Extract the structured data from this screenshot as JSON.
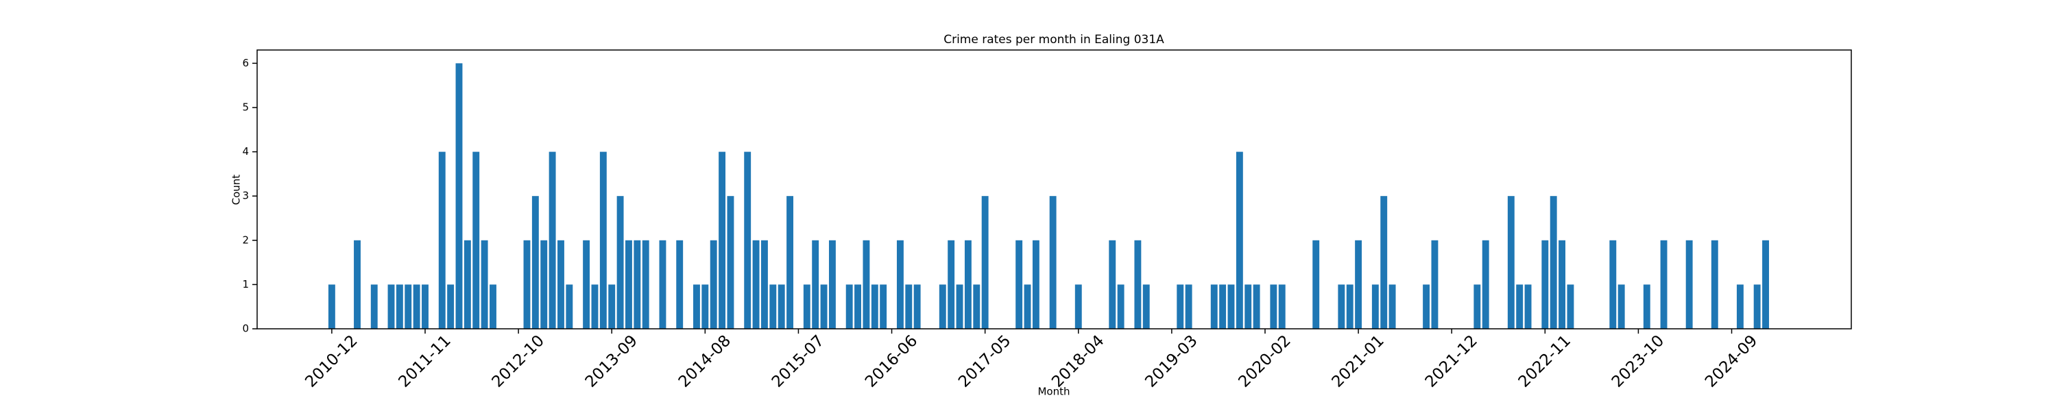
{
  "chart_data": {
    "type": "bar",
    "title": "Crime rates per month in Ealing 031A",
    "xlabel": "Month",
    "ylabel": "Count",
    "color": "#1f77b4",
    "categories": [
      "2010-12",
      null,
      null,
      null,
      null,
      null,
      null,
      null,
      null,
      null,
      null,
      "2011-11",
      null,
      null,
      null,
      null,
      null,
      null,
      null,
      null,
      null,
      null,
      "2012-10",
      null,
      null,
      null,
      null,
      null,
      null,
      null,
      null,
      null,
      null,
      "2013-09",
      null,
      null,
      null,
      null,
      null,
      null,
      null,
      null,
      null,
      null,
      "2014-08",
      null,
      null,
      null,
      null,
      null,
      null,
      null,
      null,
      null,
      null,
      "2015-07",
      null,
      null,
      null,
      null,
      null,
      null,
      null,
      null,
      null,
      null,
      "2016-06",
      null,
      null,
      null,
      null,
      null,
      null,
      null,
      null,
      null,
      null,
      "2017-05",
      null,
      null,
      null,
      null,
      null,
      null,
      null,
      null,
      null,
      null,
      "2018-04",
      null,
      null,
      null,
      null,
      null,
      null,
      null,
      null,
      null,
      null,
      "2019-03",
      null,
      null,
      null,
      null,
      null,
      null,
      null,
      null,
      null,
      null,
      "2020-02",
      null,
      null,
      null,
      null,
      null,
      null,
      null,
      null,
      null,
      null,
      "2021-01",
      null,
      null,
      null,
      null,
      null,
      null,
      null,
      null,
      null,
      null,
      "2021-12",
      null,
      null,
      null,
      null,
      null,
      null,
      null,
      null,
      null,
      null,
      "2022-11",
      null,
      null,
      null,
      null,
      null,
      null,
      null,
      null,
      null,
      null,
      "2023-10",
      null,
      null,
      null,
      null,
      null,
      null,
      null,
      null,
      null,
      null,
      "2024-09",
      null,
      null,
      null,
      null
    ],
    "values": [
      1,
      0,
      0,
      2,
      0,
      1,
      0,
      1,
      1,
      1,
      1,
      1,
      0,
      4,
      1,
      6,
      2,
      4,
      2,
      1,
      0,
      0,
      0,
      2,
      3,
      2,
      4,
      2,
      1,
      0,
      2,
      1,
      4,
      1,
      3,
      2,
      2,
      2,
      0,
      2,
      0,
      2,
      0,
      1,
      1,
      2,
      4,
      3,
      0,
      4,
      2,
      2,
      1,
      1,
      3,
      0,
      1,
      2,
      1,
      2,
      0,
      1,
      1,
      2,
      1,
      1,
      0,
      2,
      1,
      1,
      0,
      0,
      1,
      2,
      1,
      2,
      1,
      3,
      0,
      0,
      0,
      2,
      1,
      2,
      0,
      3,
      0,
      0,
      1,
      0,
      0,
      0,
      2,
      1,
      0,
      2,
      1,
      0,
      0,
      0,
      1,
      1,
      0,
      0,
      1,
      1,
      1,
      4,
      1,
      1,
      0,
      1,
      1,
      0,
      0,
      0,
      2,
      0,
      0,
      1,
      1,
      2,
      0,
      1,
      3,
      1,
      0,
      0,
      0,
      1,
      2,
      0,
      0,
      0,
      0,
      1,
      2,
      0,
      0,
      3,
      1,
      1,
      0,
      2,
      3,
      2,
      1,
      0,
      0,
      0,
      0,
      2,
      1,
      0,
      0,
      1,
      0,
      2,
      0,
      0,
      2,
      0,
      0,
      2,
      0,
      0,
      1,
      0,
      1,
      2
    ],
    "ylim": [
      0,
      6.3
    ],
    "yticks": [
      0,
      1,
      2,
      3,
      4,
      5,
      6
    ]
  }
}
